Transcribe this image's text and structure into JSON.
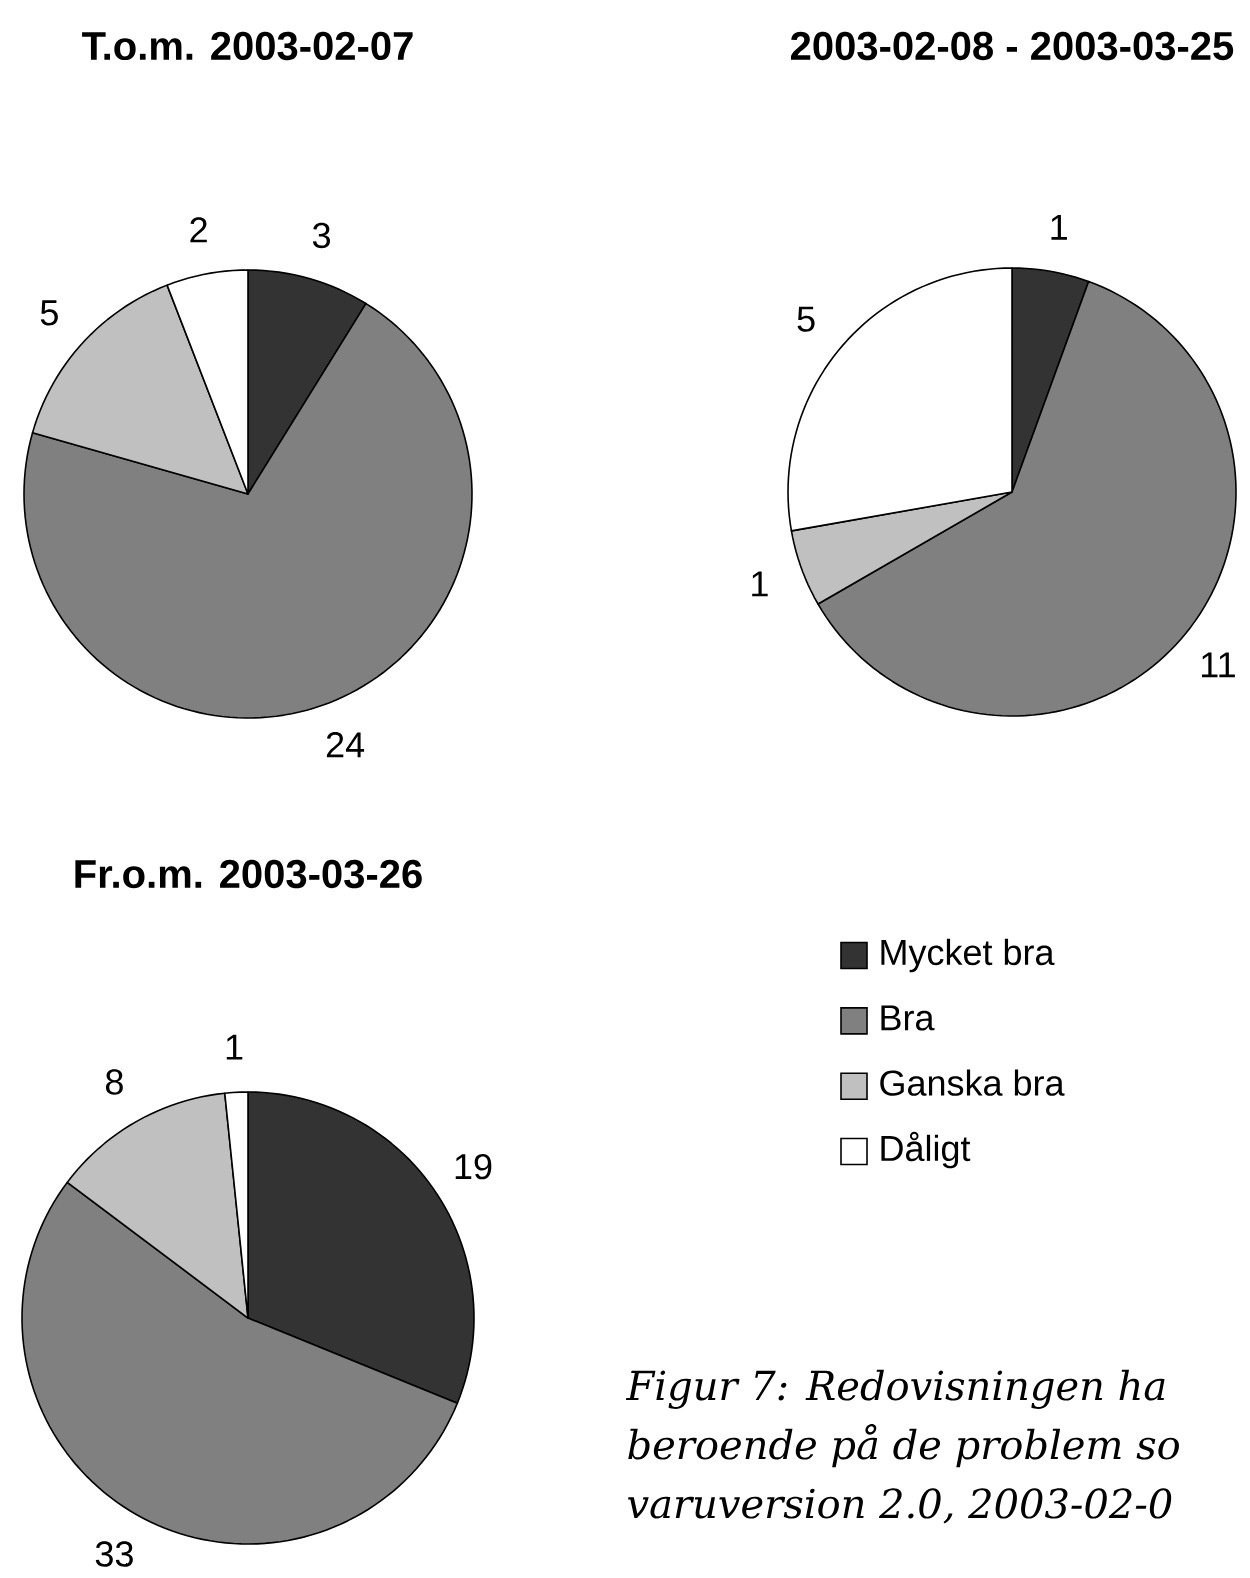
{
  "chart_data": [
    {
      "type": "pie",
      "title": "T.o.m. 2003-02-07",
      "categories": [
        null,
        null,
        null,
        null
      ],
      "values": [
        3,
        24,
        5,
        2
      ],
      "colors": [
        "#333333",
        "#808080",
        "#c0c0c0",
        "#ffffff"
      ],
      "data_labels": true
    },
    {
      "type": "pie",
      "title": "2003-02-08 - 2003-03-25",
      "categories": [
        null,
        null,
        null,
        null
      ],
      "values": [
        1,
        11,
        1,
        5
      ],
      "colors": [
        "#333333",
        "#808080",
        "#c0c0c0",
        "#ffffff"
      ],
      "data_labels": true
    },
    {
      "type": "pie",
      "title": "Fr.o.m. 2003-03-26",
      "categories": [
        "Mycket bra",
        "Bra",
        "Ganska bra",
        "Dåligt"
      ],
      "values": [
        19,
        33,
        8,
        1
      ],
      "colors": [
        "#333333",
        "#808080",
        "#c0c0c0",
        "#ffffff"
      ],
      "data_labels": true,
      "legend": "right",
      "annotations": [
        "Figur 7: Redovisningen ha",
        "beroende på de problem so",
        "varuversion 2.0, 2003-02-0"
      ]
    }
  ]
}
